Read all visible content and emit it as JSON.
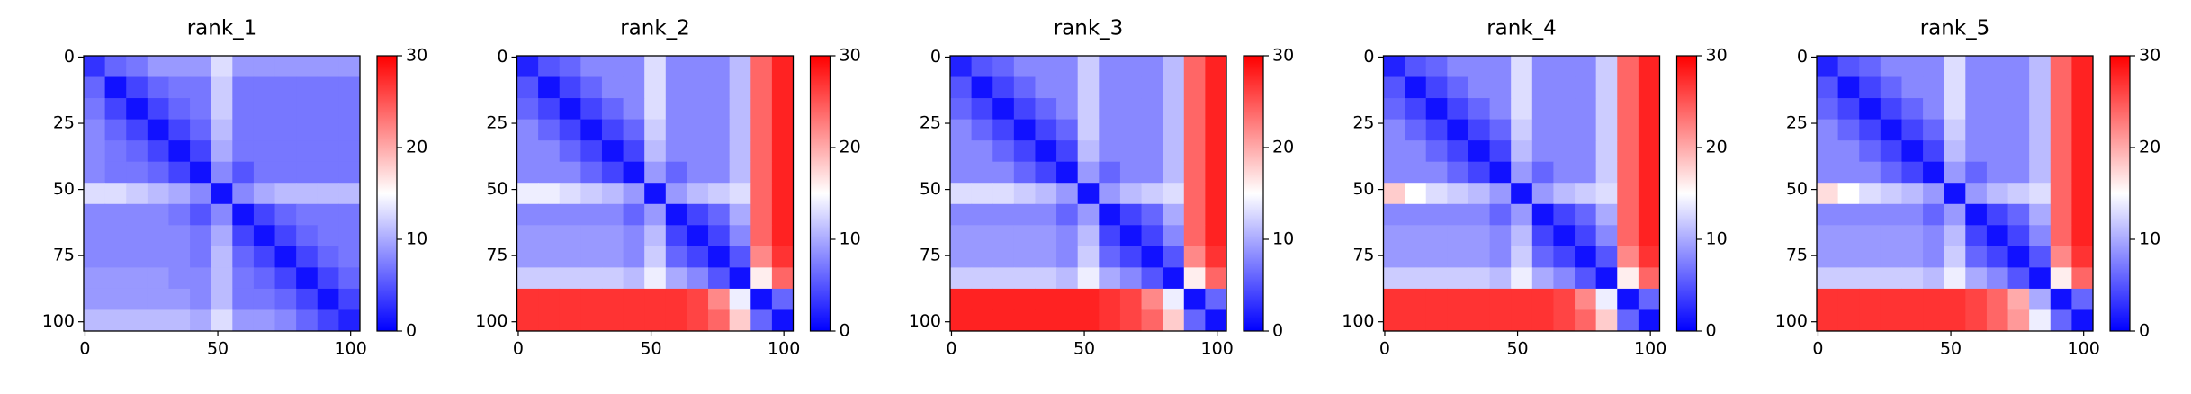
{
  "chart_data": [
    {
      "type": "heatmap",
      "title": "rank_1",
      "x_bins": [
        -0.5,
        7.5,
        15.5,
        23.5,
        31.5,
        39.5,
        47.5,
        55.5,
        63.5,
        71.5,
        79.5,
        87.5,
        95.5,
        103.5
      ],
      "y_bins": [
        -0.5,
        7.5,
        15.5,
        23.5,
        31.5,
        39.5,
        47.5,
        55.5,
        63.5,
        71.5,
        79.5,
        87.5,
        95.5,
        103.5
      ],
      "xlim": [
        -0.5,
        103.5
      ],
      "ylim": [
        103.5,
        -0.5
      ],
      "xticks": [
        0,
        50,
        100
      ],
      "yticks": [
        0,
        25,
        50,
        75,
        100
      ],
      "colormap": [
        "#0000ff",
        "#ffffff",
        "#ff0000"
      ],
      "clim": [
        0,
        30
      ],
      "cticks": [
        0,
        10,
        20,
        30
      ],
      "values": [
        [
          3,
          6,
          7,
          9,
          9,
          9,
          13,
          9,
          9,
          9,
          9,
          9,
          9
        ],
        [
          6,
          1,
          4,
          6,
          7,
          7,
          12,
          7,
          7,
          7,
          7,
          7,
          7
        ],
        [
          7,
          4,
          1,
          4,
          6,
          7,
          12,
          7,
          7,
          7,
          7,
          7,
          7
        ],
        [
          8,
          6,
          4,
          1,
          4,
          6,
          11,
          7,
          7,
          7,
          7,
          7,
          7
        ],
        [
          8,
          7,
          6,
          4,
          1,
          4,
          10,
          7,
          7,
          7,
          7,
          7,
          7
        ],
        [
          8,
          7,
          7,
          6,
          4,
          1,
          8,
          5,
          7,
          7,
          7,
          7,
          7
        ],
        [
          13,
          13,
          12,
          11,
          10,
          8,
          1,
          8,
          10,
          11,
          11,
          11,
          11
        ],
        [
          8,
          8,
          8,
          8,
          7,
          5,
          8,
          1,
          4,
          6,
          7,
          7,
          7
        ],
        [
          8,
          8,
          8,
          8,
          8,
          7,
          10,
          4,
          1,
          4,
          6,
          7,
          7
        ],
        [
          8,
          8,
          8,
          8,
          8,
          7,
          11,
          6,
          4,
          1,
          4,
          6,
          7
        ],
        [
          9,
          9,
          9,
          9,
          8,
          8,
          11,
          7,
          6,
          4,
          1,
          4,
          6
        ],
        [
          9,
          9,
          9,
          9,
          9,
          8,
          11,
          7,
          7,
          6,
          4,
          1,
          4
        ],
        [
          11,
          11,
          11,
          11,
          11,
          10,
          13,
          9,
          9,
          8,
          6,
          4,
          2
        ]
      ]
    },
    {
      "type": "heatmap",
      "title": "rank_2",
      "x_bins": [
        -0.5,
        7.5,
        15.5,
        23.5,
        31.5,
        39.5,
        47.5,
        55.5,
        63.5,
        71.5,
        79.5,
        87.5,
        95.5,
        103.5
      ],
      "y_bins": [
        -0.5,
        7.5,
        15.5,
        23.5,
        31.5,
        39.5,
        47.5,
        55.5,
        63.5,
        71.5,
        79.5,
        87.5,
        95.5,
        103.5
      ],
      "xlim": [
        -0.5,
        103.5
      ],
      "ylim": [
        103.5,
        -0.5
      ],
      "xticks": [
        0,
        50,
        100
      ],
      "yticks": [
        0,
        25,
        50,
        75,
        100
      ],
      "colormap": [
        "#0000ff",
        "#ffffff",
        "#ff0000"
      ],
      "clim": [
        0,
        30
      ],
      "cticks": [
        0,
        10,
        20,
        30
      ],
      "values": [
        [
          2,
          5,
          6,
          8,
          8,
          8,
          13,
          8,
          8,
          8,
          11,
          24,
          28
        ],
        [
          5,
          1,
          4,
          6,
          8,
          8,
          13,
          8,
          8,
          8,
          11,
          24,
          28
        ],
        [
          6,
          4,
          1,
          4,
          6,
          8,
          13,
          8,
          8,
          8,
          11,
          24,
          28
        ],
        [
          8,
          6,
          4,
          1,
          4,
          6,
          12,
          8,
          8,
          8,
          11,
          24,
          28
        ],
        [
          8,
          8,
          6,
          4,
          1,
          4,
          11,
          8,
          8,
          8,
          11,
          24,
          28
        ],
        [
          8,
          8,
          8,
          6,
          4,
          1,
          9,
          6,
          8,
          8,
          11,
          24,
          28
        ],
        [
          14,
          14,
          13,
          12,
          11,
          9,
          1,
          9,
          11,
          12,
          13,
          24,
          28
        ],
        [
          8,
          8,
          8,
          8,
          8,
          6,
          9,
          1,
          4,
          6,
          10,
          24,
          28
        ],
        [
          9,
          9,
          9,
          9,
          9,
          8,
          11,
          4,
          1,
          4,
          8,
          24,
          28
        ],
        [
          9,
          9,
          9,
          9,
          9,
          8,
          12,
          6,
          4,
          1,
          5,
          22,
          27
        ],
        [
          12,
          12,
          12,
          12,
          12,
          11,
          14,
          10,
          8,
          5,
          1,
          16,
          24
        ],
        [
          27,
          27,
          27,
          27,
          27,
          27,
          27,
          27,
          26,
          22,
          14,
          1,
          6
        ],
        [
          27,
          27,
          27,
          27,
          27,
          27,
          27,
          27,
          26,
          24,
          18,
          6,
          1
        ]
      ]
    },
    {
      "type": "heatmap",
      "title": "rank_3",
      "x_bins": [
        -0.5,
        7.5,
        15.5,
        23.5,
        31.5,
        39.5,
        47.5,
        55.5,
        63.5,
        71.5,
        79.5,
        87.5,
        95.5,
        103.5
      ],
      "y_bins": [
        -0.5,
        7.5,
        15.5,
        23.5,
        31.5,
        39.5,
        47.5,
        55.5,
        63.5,
        71.5,
        79.5,
        87.5,
        95.5,
        103.5
      ],
      "xlim": [
        -0.5,
        103.5
      ],
      "ylim": [
        103.5,
        -0.5
      ],
      "xticks": [
        0,
        50,
        100
      ],
      "yticks": [
        0,
        25,
        50,
        75,
        100
      ],
      "colormap": [
        "#0000ff",
        "#ffffff",
        "#ff0000"
      ],
      "clim": [
        0,
        30
      ],
      "cticks": [
        0,
        10,
        20,
        30
      ],
      "values": [
        [
          2,
          5,
          6,
          8,
          8,
          8,
          12,
          8,
          8,
          8,
          11,
          24,
          28
        ],
        [
          5,
          1,
          4,
          6,
          8,
          8,
          12,
          8,
          8,
          8,
          11,
          24,
          28
        ],
        [
          6,
          4,
          1,
          4,
          6,
          8,
          12,
          8,
          8,
          8,
          11,
          24,
          28
        ],
        [
          8,
          6,
          4,
          1,
          4,
          6,
          12,
          8,
          8,
          8,
          11,
          24,
          28
        ],
        [
          8,
          8,
          6,
          4,
          1,
          4,
          11,
          8,
          8,
          8,
          11,
          24,
          28
        ],
        [
          8,
          8,
          8,
          6,
          4,
          1,
          9,
          6,
          8,
          8,
          11,
          24,
          28
        ],
        [
          13,
          13,
          13,
          12,
          11,
          9,
          1,
          9,
          11,
          12,
          13,
          24,
          28
        ],
        [
          8,
          8,
          8,
          8,
          8,
          6,
          9,
          1,
          4,
          6,
          10,
          24,
          28
        ],
        [
          9,
          9,
          9,
          9,
          9,
          8,
          11,
          4,
          1,
          4,
          8,
          24,
          28
        ],
        [
          9,
          9,
          9,
          9,
          9,
          8,
          12,
          6,
          4,
          1,
          5,
          22,
          27
        ],
        [
          12,
          12,
          12,
          12,
          12,
          11,
          14,
          10,
          8,
          5,
          1,
          16,
          24
        ],
        [
          28,
          28,
          28,
          28,
          28,
          28,
          28,
          27,
          26,
          22,
          14,
          1,
          6
        ],
        [
          28,
          28,
          28,
          28,
          28,
          28,
          28,
          27,
          26,
          24,
          18,
          6,
          1
        ]
      ]
    },
    {
      "type": "heatmap",
      "title": "rank_4",
      "x_bins": [
        -0.5,
        7.5,
        15.5,
        23.5,
        31.5,
        39.5,
        47.5,
        55.5,
        63.5,
        71.5,
        79.5,
        87.5,
        95.5,
        103.5
      ],
      "y_bins": [
        -0.5,
        7.5,
        15.5,
        23.5,
        31.5,
        39.5,
        47.5,
        55.5,
        63.5,
        71.5,
        79.5,
        87.5,
        95.5,
        103.5
      ],
      "xlim": [
        -0.5,
        103.5
      ],
      "ylim": [
        103.5,
        -0.5
      ],
      "xticks": [
        0,
        50,
        100
      ],
      "yticks": [
        0,
        25,
        50,
        75,
        100
      ],
      "colormap": [
        "#0000ff",
        "#ffffff",
        "#ff0000"
      ],
      "clim": [
        0,
        30
      ],
      "cticks": [
        0,
        10,
        20,
        30
      ],
      "values": [
        [
          2,
          5,
          6,
          8,
          8,
          8,
          13,
          8,
          8,
          8,
          12,
          24,
          28
        ],
        [
          5,
          1,
          4,
          6,
          8,
          8,
          13,
          8,
          8,
          8,
          12,
          24,
          28
        ],
        [
          6,
          4,
          1,
          4,
          6,
          8,
          13,
          8,
          8,
          8,
          12,
          24,
          28
        ],
        [
          8,
          6,
          4,
          1,
          4,
          6,
          12,
          8,
          8,
          8,
          12,
          24,
          28
        ],
        [
          8,
          8,
          6,
          4,
          1,
          4,
          11,
          8,
          8,
          8,
          12,
          24,
          28
        ],
        [
          8,
          8,
          8,
          6,
          4,
          1,
          9,
          6,
          8,
          8,
          12,
          24,
          28
        ],
        [
          18,
          15,
          13,
          12,
          11,
          9,
          1,
          9,
          11,
          12,
          13,
          24,
          28
        ],
        [
          8,
          8,
          8,
          8,
          8,
          6,
          9,
          1,
          4,
          6,
          10,
          24,
          28
        ],
        [
          9,
          9,
          9,
          9,
          9,
          8,
          11,
          4,
          1,
          4,
          8,
          24,
          28
        ],
        [
          9,
          9,
          9,
          9,
          9,
          8,
          12,
          6,
          4,
          1,
          5,
          22,
          27
        ],
        [
          12,
          12,
          12,
          12,
          12,
          11,
          14,
          10,
          8,
          5,
          1,
          16,
          24
        ],
        [
          27,
          27,
          27,
          27,
          27,
          27,
          27,
          27,
          26,
          22,
          14,
          1,
          6
        ],
        [
          27,
          27,
          27,
          27,
          27,
          27,
          27,
          27,
          26,
          24,
          18,
          6,
          1
        ]
      ]
    },
    {
      "type": "heatmap",
      "title": "rank_5",
      "x_bins": [
        -0.5,
        7.5,
        15.5,
        23.5,
        31.5,
        39.5,
        47.5,
        55.5,
        63.5,
        71.5,
        79.5,
        87.5,
        95.5,
        103.5
      ],
      "y_bins": [
        -0.5,
        7.5,
        15.5,
        23.5,
        31.5,
        39.5,
        47.5,
        55.5,
        63.5,
        71.5,
        79.5,
        87.5,
        95.5,
        103.5
      ],
      "xlim": [
        -0.5,
        103.5
      ],
      "ylim": [
        103.5,
        -0.5
      ],
      "xticks": [
        0,
        50,
        100
      ],
      "yticks": [
        0,
        25,
        50,
        75,
        100
      ],
      "colormap": [
        "#0000ff",
        "#ffffff",
        "#ff0000"
      ],
      "clim": [
        0,
        30
      ],
      "cticks": [
        0,
        10,
        20,
        30
      ],
      "values": [
        [
          2,
          5,
          6,
          8,
          8,
          8,
          13,
          8,
          8,
          8,
          11,
          24,
          28
        ],
        [
          5,
          1,
          4,
          6,
          8,
          8,
          13,
          8,
          8,
          8,
          11,
          24,
          28
        ],
        [
          6,
          4,
          1,
          4,
          6,
          8,
          13,
          8,
          8,
          8,
          11,
          24,
          28
        ],
        [
          8,
          6,
          4,
          1,
          4,
          6,
          12,
          8,
          8,
          8,
          11,
          24,
          28
        ],
        [
          8,
          8,
          6,
          4,
          1,
          4,
          11,
          8,
          8,
          8,
          11,
          24,
          28
        ],
        [
          8,
          8,
          8,
          6,
          4,
          1,
          9,
          6,
          8,
          8,
          11,
          24,
          28
        ],
        [
          17,
          15,
          13,
          12,
          11,
          9,
          1,
          9,
          11,
          12,
          13,
          24,
          28
        ],
        [
          8,
          8,
          8,
          8,
          8,
          6,
          9,
          1,
          4,
          6,
          10,
          24,
          28
        ],
        [
          9,
          9,
          9,
          9,
          9,
          8,
          11,
          4,
          1,
          4,
          8,
          24,
          28
        ],
        [
          9,
          9,
          9,
          9,
          9,
          8,
          12,
          6,
          4,
          1,
          5,
          22,
          27
        ],
        [
          12,
          12,
          12,
          12,
          12,
          11,
          14,
          10,
          8,
          5,
          1,
          16,
          24
        ],
        [
          27,
          27,
          27,
          27,
          27,
          27,
          27,
          26,
          24,
          20,
          10,
          1,
          6
        ],
        [
          27,
          27,
          27,
          27,
          27,
          27,
          27,
          26,
          24,
          21,
          14,
          6,
          1
        ]
      ]
    }
  ]
}
